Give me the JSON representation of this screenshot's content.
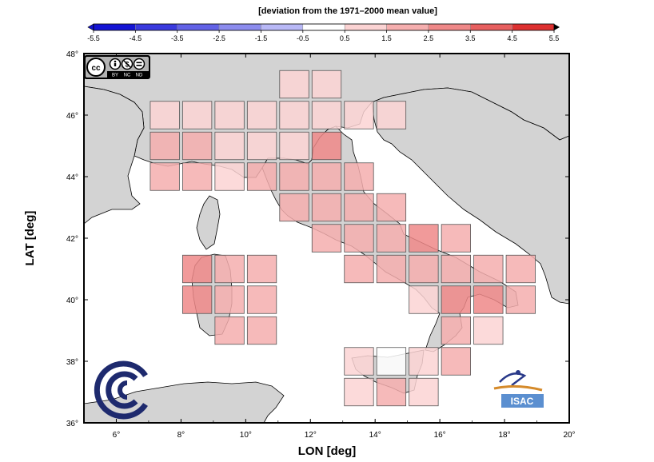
{
  "colorbar": {
    "title": "[deviation from the 1971–2000 mean value]",
    "ticks": [
      "-5.5",
      "-4.5",
      "-3.5",
      "-2.5",
      "-1.5",
      "-0.5",
      "0.5",
      "1.5",
      "2.5",
      "3.5",
      "4.5",
      "5.5"
    ],
    "colors": [
      "#1414d4",
      "#3a3ade",
      "#6262e6",
      "#8c8cee",
      "#b8b8f6",
      "#ffffff",
      "#fbd3d3",
      "#f5aeae",
      "#ef8888",
      "#e75f5f",
      "#dd3030"
    ]
  },
  "axes": {
    "xlabel": "LON [deg]",
    "ylabel": "LAT [deg]",
    "xticks": [
      "6°",
      "8°",
      "10°",
      "12°",
      "14°",
      "16°",
      "18°",
      "20°"
    ],
    "yticks": [
      "36°",
      "38°",
      "40°",
      "42°",
      "44°",
      "46°",
      "48°"
    ],
    "xlim": [
      5,
      20
    ],
    "ylim": [
      36,
      48
    ]
  },
  "map": {
    "land_color": "#d3d3d3",
    "sea_color": "#ffffff",
    "cells": [
      {
        "lon": 11.5,
        "lat": 47.0,
        "value": 1.0
      },
      {
        "lon": 12.5,
        "lat": 47.0,
        "value": 1.0
      },
      {
        "lon": 7.5,
        "lat": 46.0,
        "value": 1.0
      },
      {
        "lon": 8.5,
        "lat": 46.0,
        "value": 1.0
      },
      {
        "lon": 9.5,
        "lat": 46.0,
        "value": 1.0
      },
      {
        "lon": 10.5,
        "lat": 46.0,
        "value": 1.0
      },
      {
        "lon": 11.5,
        "lat": 46.0,
        "value": 1.0
      },
      {
        "lon": 12.5,
        "lat": 46.0,
        "value": 1.0
      },
      {
        "lon": 13.5,
        "lat": 46.0,
        "value": 1.0
      },
      {
        "lon": 14.5,
        "lat": 46.0,
        "value": 1.0
      },
      {
        "lon": 7.5,
        "lat": 45.0,
        "value": 2.0
      },
      {
        "lon": 8.5,
        "lat": 45.0,
        "value": 2.0
      },
      {
        "lon": 9.5,
        "lat": 45.0,
        "value": 1.0
      },
      {
        "lon": 10.5,
        "lat": 45.0,
        "value": 1.0
      },
      {
        "lon": 11.5,
        "lat": 45.0,
        "value": 1.0
      },
      {
        "lon": 12.5,
        "lat": 45.0,
        "value": 3.0
      },
      {
        "lon": 7.5,
        "lat": 44.0,
        "value": 2.0
      },
      {
        "lon": 8.5,
        "lat": 44.0,
        "value": 2.0
      },
      {
        "lon": 9.5,
        "lat": 44.0,
        "value": 1.0
      },
      {
        "lon": 10.5,
        "lat": 44.0,
        "value": 2.0
      },
      {
        "lon": 11.5,
        "lat": 44.0,
        "value": 2.0
      },
      {
        "lon": 12.5,
        "lat": 44.0,
        "value": 2.0
      },
      {
        "lon": 13.5,
        "lat": 44.0,
        "value": 2.0
      },
      {
        "lon": 11.5,
        "lat": 43.0,
        "value": 2.0
      },
      {
        "lon": 12.5,
        "lat": 43.0,
        "value": 2.0
      },
      {
        "lon": 13.5,
        "lat": 43.0,
        "value": 2.0
      },
      {
        "lon": 14.5,
        "lat": 43.0,
        "value": 2.0
      },
      {
        "lon": 12.5,
        "lat": 42.0,
        "value": 2.0
      },
      {
        "lon": 13.5,
        "lat": 42.0,
        "value": 2.0
      },
      {
        "lon": 14.5,
        "lat": 42.0,
        "value": 2.0
      },
      {
        "lon": 15.5,
        "lat": 42.0,
        "value": 3.0
      },
      {
        "lon": 16.5,
        "lat": 42.0,
        "value": 2.0
      },
      {
        "lon": 8.5,
        "lat": 41.0,
        "value": 3.0
      },
      {
        "lon": 9.5,
        "lat": 41.0,
        "value": 2.0
      },
      {
        "lon": 10.5,
        "lat": 41.0,
        "value": 2.0
      },
      {
        "lon": 13.5,
        "lat": 41.0,
        "value": 2.0
      },
      {
        "lon": 14.5,
        "lat": 41.0,
        "value": 2.0
      },
      {
        "lon": 15.5,
        "lat": 41.0,
        "value": 2.0
      },
      {
        "lon": 16.5,
        "lat": 41.0,
        "value": 2.0
      },
      {
        "lon": 17.5,
        "lat": 41.0,
        "value": 2.0
      },
      {
        "lon": 18.5,
        "lat": 41.0,
        "value": 2.0
      },
      {
        "lon": 8.5,
        "lat": 40.0,
        "value": 3.0
      },
      {
        "lon": 9.5,
        "lat": 40.0,
        "value": 2.0
      },
      {
        "lon": 10.5,
        "lat": 40.0,
        "value": 2.0
      },
      {
        "lon": 15.5,
        "lat": 40.0,
        "value": 1.0
      },
      {
        "lon": 16.5,
        "lat": 40.0,
        "value": 3.0
      },
      {
        "lon": 17.5,
        "lat": 40.0,
        "value": 3.0
      },
      {
        "lon": 18.5,
        "lat": 40.0,
        "value": 2.0
      },
      {
        "lon": 9.5,
        "lat": 39.0,
        "value": 2.0
      },
      {
        "lon": 10.5,
        "lat": 39.0,
        "value": 2.0
      },
      {
        "lon": 16.5,
        "lat": 39.0,
        "value": 2.0
      },
      {
        "lon": 17.5,
        "lat": 39.0,
        "value": 1.0
      },
      {
        "lon": 13.5,
        "lat": 38.0,
        "value": 1.0
      },
      {
        "lon": 14.5,
        "lat": 38.0,
        "value": 0.0
      },
      {
        "lon": 15.5,
        "lat": 38.0,
        "value": 1.0
      },
      {
        "lon": 16.5,
        "lat": 38.0,
        "value": 2.0
      },
      {
        "lon": 13.5,
        "lat": 37.0,
        "value": 1.0
      },
      {
        "lon": 14.5,
        "lat": 37.0,
        "value": 2.0
      },
      {
        "lon": 15.5,
        "lat": 37.0,
        "value": 1.0
      }
    ]
  },
  "logos": {
    "license_labels": [
      "BY",
      "NC",
      "ND"
    ],
    "isac_label": "ISAC"
  }
}
